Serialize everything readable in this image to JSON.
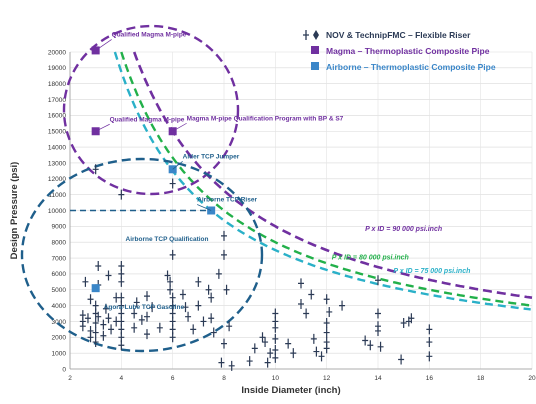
{
  "chart_data": {
    "type": "scatter",
    "xlabel": "Inside Diameter (inch)",
    "ylabel": "Design Pressure (psi)",
    "xlim": [
      2,
      20
    ],
    "ylim": [
      0,
      20000
    ],
    "xticks": [
      2,
      4,
      6,
      8,
      10,
      12,
      14,
      16,
      18,
      20
    ],
    "yticks": [
      0,
      1000,
      2000,
      3000,
      4000,
      5000,
      6000,
      7000,
      8000,
      9000,
      10000,
      11000,
      12000,
      13000,
      14000,
      15000,
      16000,
      17000,
      18000,
      19000,
      20000
    ],
    "grid": true,
    "legend_position": "top-right",
    "colors": {
      "nov": "#2b3a55",
      "magma": "#7030a0",
      "airborne": "#3a86c8",
      "green": "#22b04a",
      "teal": "#2ab0c8",
      "navy": "#1f5f8b"
    },
    "series": [
      {
        "name": "NOV & TechnipFMC – Flexible Riser",
        "marker": "cross",
        "points": [
          [
            2.5,
            3400
          ],
          [
            2.5,
            3000
          ],
          [
            2.5,
            2700
          ],
          [
            2.6,
            5500
          ],
          [
            2.7,
            3200
          ],
          [
            2.8,
            4400
          ],
          [
            2.8,
            2400
          ],
          [
            2.8,
            2000
          ],
          [
            3.0,
            12600
          ],
          [
            3.0,
            4000
          ],
          [
            3.0,
            3500
          ],
          [
            3.0,
            2900
          ],
          [
            3.0,
            2300
          ],
          [
            3.0,
            1700
          ],
          [
            3.1,
            5300
          ],
          [
            3.1,
            3300
          ],
          [
            3.1,
            6500
          ],
          [
            3.3,
            2800
          ],
          [
            3.3,
            2100
          ],
          [
            3.4,
            3800
          ],
          [
            3.5,
            5900
          ],
          [
            3.5,
            3200
          ],
          [
            3.6,
            2500
          ],
          [
            3.8,
            4500
          ],
          [
            3.8,
            3000
          ],
          [
            4.0,
            6500
          ],
          [
            4.0,
            6000
          ],
          [
            4.0,
            5500
          ],
          [
            4.0,
            4500
          ],
          [
            4.0,
            4000
          ],
          [
            4.0,
            3500
          ],
          [
            4.0,
            3000
          ],
          [
            4.0,
            2500
          ],
          [
            4.0,
            2000
          ],
          [
            4.0,
            1500
          ],
          [
            4.0,
            11000
          ],
          [
            4.5,
            3500
          ],
          [
            4.5,
            2600
          ],
          [
            4.6,
            4200
          ],
          [
            4.8,
            3100
          ],
          [
            5.0,
            4600
          ],
          [
            5.0,
            3300
          ],
          [
            5.0,
            2200
          ],
          [
            5.2,
            3900
          ],
          [
            5.5,
            2600
          ],
          [
            5.8,
            5900
          ],
          [
            5.9,
            5500
          ],
          [
            5.9,
            5000
          ],
          [
            6.0,
            7200
          ],
          [
            6.0,
            4500
          ],
          [
            6.0,
            4000
          ],
          [
            6.0,
            3500
          ],
          [
            6.0,
            3000
          ],
          [
            6.0,
            2500
          ],
          [
            6.0,
            2000
          ],
          [
            6.0,
            11700
          ],
          [
            6.4,
            4700
          ],
          [
            6.5,
            3900
          ],
          [
            6.6,
            3300
          ],
          [
            6.8,
            2500
          ],
          [
            7.0,
            5500
          ],
          [
            7.0,
            4000
          ],
          [
            7.2,
            3000
          ],
          [
            7.4,
            5000
          ],
          [
            7.5,
            4500
          ],
          [
            7.5,
            3200
          ],
          [
            7.6,
            2300
          ],
          [
            7.8,
            6000
          ],
          [
            8.0,
            7200
          ],
          [
            8.0,
            8400
          ],
          [
            8.1,
            5000
          ],
          [
            8.2,
            2700
          ],
          [
            8.0,
            1600
          ],
          [
            7.9,
            400
          ],
          [
            8.3,
            200
          ],
          [
            9.0,
            500
          ],
          [
            9.2,
            1300
          ],
          [
            9.5,
            2000
          ],
          [
            9.6,
            1700
          ],
          [
            9.8,
            1000
          ],
          [
            10.0,
            3500
          ],
          [
            10.0,
            3000
          ],
          [
            10.0,
            2600
          ],
          [
            10.0,
            1900
          ],
          [
            10.0,
            1200
          ],
          [
            10.0,
            700
          ],
          [
            9.7,
            400
          ],
          [
            10.5,
            1600
          ],
          [
            10.7,
            1000
          ],
          [
            11.0,
            5400
          ],
          [
            11.0,
            4100
          ],
          [
            11.2,
            3500
          ],
          [
            11.4,
            4700
          ],
          [
            11.5,
            1900
          ],
          [
            11.6,
            1100
          ],
          [
            11.8,
            800
          ],
          [
            12.0,
            2900
          ],
          [
            12.0,
            2300
          ],
          [
            12.0,
            1700
          ],
          [
            12.0,
            1300
          ],
          [
            12.1,
            3600
          ],
          [
            12.0,
            4400
          ],
          [
            12.6,
            4000
          ],
          [
            13.5,
            1800
          ],
          [
            13.7,
            1500
          ],
          [
            14.0,
            5600
          ],
          [
            14.0,
            3500
          ],
          [
            14.0,
            2700
          ],
          [
            14.0,
            2400
          ],
          [
            14.1,
            1400
          ],
          [
            14.9,
            600
          ],
          [
            15.0,
            2900
          ],
          [
            15.2,
            3000
          ],
          [
            15.3,
            3200
          ],
          [
            16.0,
            2500
          ],
          [
            16.0,
            1700
          ],
          [
            16.0,
            800
          ]
        ]
      },
      {
        "name": "Magma – Thermoplastic Composite Pipe",
        "marker": "square",
        "points": [
          [
            3.0,
            20100
          ],
          [
            3.0,
            15000
          ],
          [
            6.0,
            15000
          ]
        ]
      },
      {
        "name": "Airborne – Thermoplastic Composite Pipe",
        "marker": "square",
        "points": [
          [
            6.0,
            12600
          ],
          [
            7.5,
            10000
          ],
          [
            3.0,
            5100
          ]
        ]
      }
    ],
    "curves": [
      {
        "label": "P x ID = 90 000 psi.inch",
        "k": 90000,
        "label_at": [
          13.5,
          8700
        ]
      },
      {
        "label": "P x ID = 80 000 psi.inch",
        "k": 80000,
        "label_at": [
          12.2,
          6900
        ]
      },
      {
        "label": "P x ID = 75 000 psi.inch",
        "k": 75000,
        "label_at": [
          14.6,
          6050
        ]
      }
    ],
    "annotations": [
      {
        "text": "Qualified Magma M-pipe",
        "x": 3.0,
        "y": 20100
      },
      {
        "text": "Qualified Magma M-pipe",
        "x": 3.0,
        "y": 15000
      },
      {
        "text": "Magma M-pipe Qualification Program with BP & S7",
        "x": 6.0,
        "y": 15000
      },
      {
        "text": "Alder TCP Jumper",
        "x": 6.0,
        "y": 12600
      },
      {
        "text": "Airborne TCP Riser",
        "x": 7.5,
        "y": 10000
      },
      {
        "text": "Airborne TCP Qualification",
        "x": 5.8,
        "y": 8700
      },
      {
        "text": "Agora-Lube TCP Gasoline",
        "x": 3.0,
        "y": 5100
      }
    ]
  }
}
